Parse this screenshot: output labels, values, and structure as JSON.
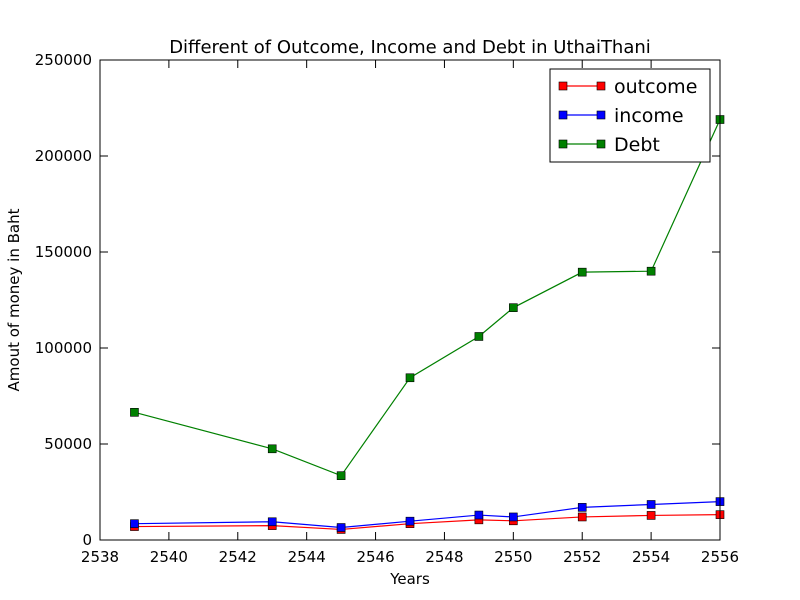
{
  "chart_data": {
    "type": "line",
    "title": "Different of Outcome, Income and Debt in UthaiThani",
    "xlabel": "Years",
    "ylabel": "Amout of money in Baht",
    "xlim": [
      2538,
      2556
    ],
    "ylim": [
      0,
      250000
    ],
    "x_ticks": [
      2538,
      2540,
      2542,
      2544,
      2546,
      2548,
      2550,
      2552,
      2554,
      2556
    ],
    "y_ticks": [
      0,
      50000,
      100000,
      150000,
      200000,
      250000
    ],
    "x": [
      2539,
      2543,
      2545,
      2547,
      2549,
      2550,
      2552,
      2554,
      2556
    ],
    "grid": false,
    "legend_position": "top-right",
    "series": [
      {
        "name": "outcome",
        "color": "#ff0000",
        "marker": "square",
        "values": [
          7000,
          7500,
          5500,
          8500,
          10500,
          10000,
          12000,
          12800,
          13200
        ]
      },
      {
        "name": "income",
        "color": "#0000ff",
        "marker": "square",
        "values": [
          8500,
          9500,
          6500,
          9800,
          13000,
          12000,
          17000,
          18500,
          20000
        ]
      },
      {
        "name": "Debt",
        "color": "#008000",
        "marker": "square",
        "values": [
          66500,
          47500,
          33500,
          84500,
          106000,
          121000,
          139500,
          140000,
          219000
        ]
      }
    ]
  }
}
